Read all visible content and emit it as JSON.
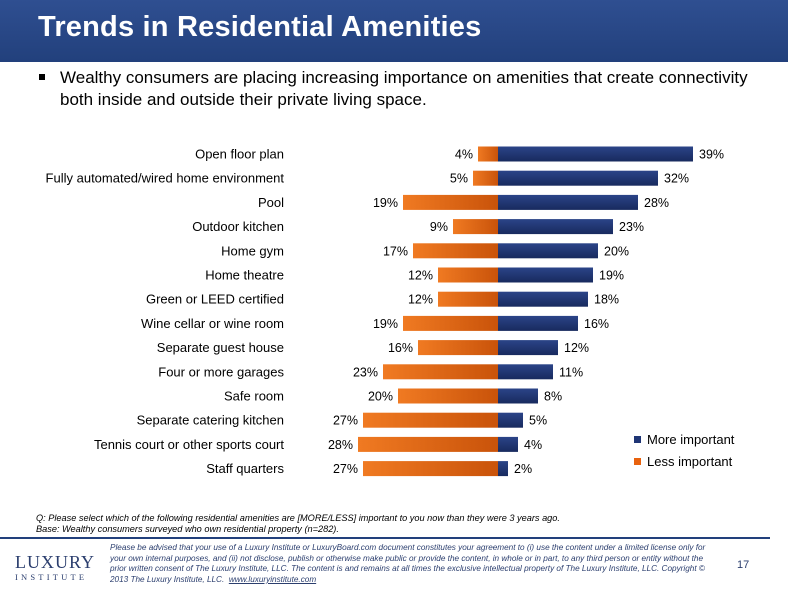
{
  "header": {
    "title": "Trends in Residential Amenities"
  },
  "bullet": {
    "text": "Wealthy consumers are placing increasing importance on amenities that create connectivity both inside and outside their private living space."
  },
  "chart_data": {
    "type": "bar",
    "orientation": "horizontal-diverging",
    "categories": [
      "Open floor plan",
      "Fully automated/wired home environment",
      "Pool",
      "Outdoor kitchen",
      "Home gym",
      "Home theatre",
      "Green or LEED certified",
      "Wine cellar or wine room",
      "Separate guest house",
      "Four or more garages",
      "Safe room",
      "Separate catering kitchen",
      "Tennis court or other sports court",
      "Staff quarters"
    ],
    "series": [
      {
        "name": "More important",
        "color": "#1f3575",
        "values": [
          39,
          32,
          28,
          23,
          20,
          19,
          18,
          16,
          12,
          11,
          8,
          5,
          4,
          2
        ]
      },
      {
        "name": "Less important",
        "color": "#e8620e",
        "values": [
          4,
          5,
          19,
          9,
          17,
          12,
          12,
          19,
          16,
          23,
          20,
          27,
          28,
          27
        ]
      }
    ],
    "value_suffix": "%",
    "legend_position": "bottom-right",
    "grid": false
  },
  "legend": {
    "more": "More important",
    "less": "Less important"
  },
  "notes": {
    "question": "Q: Please select which of the following residential amenities are [MORE/LESS] important to you now than they were 3 years ago.",
    "base": "Base: Wealthy consumers surveyed who own residential property (n=282)."
  },
  "footer": {
    "logo_main": "LUXURY",
    "logo_sub": "INSTITUTE",
    "disclaimer": "Please be advised that your use of a Luxury Institute or LuxuryBoard.com document constitutes your agreement to (i) use the content under a limited license only for your own internal purposes, and (ii) not disclose, publish or otherwise make public or provide the content, in whole or in part, to any third person or entity without the prior written consent of The Luxury Institute, LLC. The content is and remains at all times the exclusive intellectual property of The Luxury Institute, LLC. Copyright © 2013 The Luxury Institute, LLC.",
    "link": "www.luxuryinstitute.com",
    "page": "17"
  }
}
